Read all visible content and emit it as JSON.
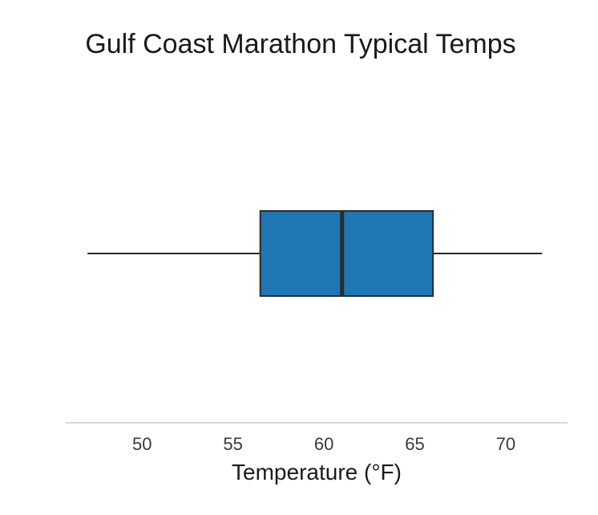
{
  "chart_data": {
    "type": "box",
    "title": "Gulf Coast Marathon Typical Temps",
    "xlabel": "Temperature (°F)",
    "ylabel": "",
    "orientation": "horizontal",
    "xlim": [
      45.8,
      73.4
    ],
    "xticks": [
      50,
      55,
      60,
      65,
      70
    ],
    "grid": false,
    "legend": "none",
    "box": {
      "whisker_low": 47,
      "q1": 56.5,
      "median": 61,
      "q3": 66,
      "whisker_high": 72
    },
    "colors": {
      "box_fill": "#1f77b4",
      "box_edge": "#2b2b2b",
      "axis_line": "#b0b0b0"
    }
  }
}
